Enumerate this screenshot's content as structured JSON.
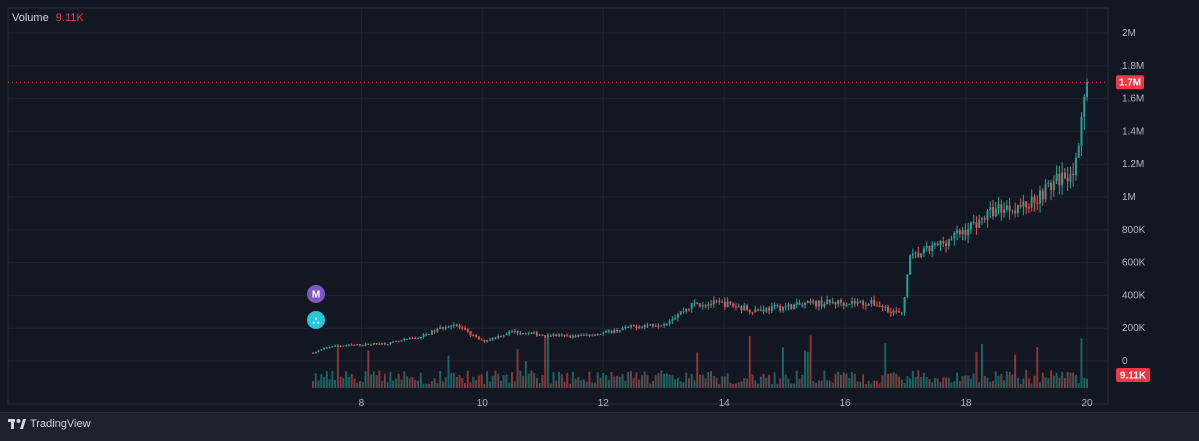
{
  "legend": {
    "label": "Volume",
    "value": "9.11K"
  },
  "brand": "TradingView",
  "markers": [
    {
      "letter": "M",
      "color": "#7e57c2"
    },
    {
      "letter": "⛬",
      "color": "#26c6da"
    }
  ],
  "colors": {
    "up": "#26a69a",
    "down": "#ef5350",
    "badge": "#f23645"
  },
  "chart_data": {
    "type": "candlestick",
    "x_tick_labels": [
      "8",
      "10",
      "12",
      "14",
      "16",
      "18",
      "20"
    ],
    "x_ticks_days": [
      8,
      10,
      12,
      14,
      16,
      18,
      20
    ],
    "x_range_days": [
      7.1,
      20.05
    ],
    "y_tick_labels": [
      "0",
      "200K",
      "400K",
      "600K",
      "800K",
      "1M",
      "1.2M",
      "1.4M",
      "1.6M",
      "1.8M",
      "2M"
    ],
    "y_ticks": [
      0,
      200000,
      400000,
      600000,
      800000,
      1000000,
      1200000,
      1400000,
      1600000,
      1800000,
      2000000
    ],
    "y_range": [
      0,
      2000000
    ],
    "last_price": 1700000,
    "last_price_label": "1.7M",
    "volume_last_label": "9.11K",
    "price_anchors": [
      [
        7.2,
        50000
      ],
      [
        7.5,
        90000
      ],
      [
        8.0,
        100000
      ],
      [
        8.5,
        110000
      ],
      [
        9.0,
        150000
      ],
      [
        9.5,
        230000
      ],
      [
        10.0,
        120000
      ],
      [
        10.5,
        180000
      ],
      [
        11.0,
        160000
      ],
      [
        11.5,
        150000
      ],
      [
        12.0,
        170000
      ],
      [
        12.5,
        210000
      ],
      [
        13.0,
        230000
      ],
      [
        13.5,
        350000
      ],
      [
        14.0,
        350000
      ],
      [
        14.5,
        310000
      ],
      [
        15.0,
        330000
      ],
      [
        15.5,
        350000
      ],
      [
        16.0,
        360000
      ],
      [
        16.5,
        350000
      ],
      [
        16.95,
        280000
      ],
      [
        17.05,
        620000
      ],
      [
        17.5,
        700000
      ],
      [
        18.0,
        800000
      ],
      [
        18.5,
        930000
      ],
      [
        19.0,
        950000
      ],
      [
        19.5,
        1100000
      ],
      [
        19.7,
        1150000
      ],
      [
        19.85,
        1200000
      ],
      [
        19.95,
        1650000
      ],
      [
        20.0,
        1700000
      ]
    ]
  }
}
